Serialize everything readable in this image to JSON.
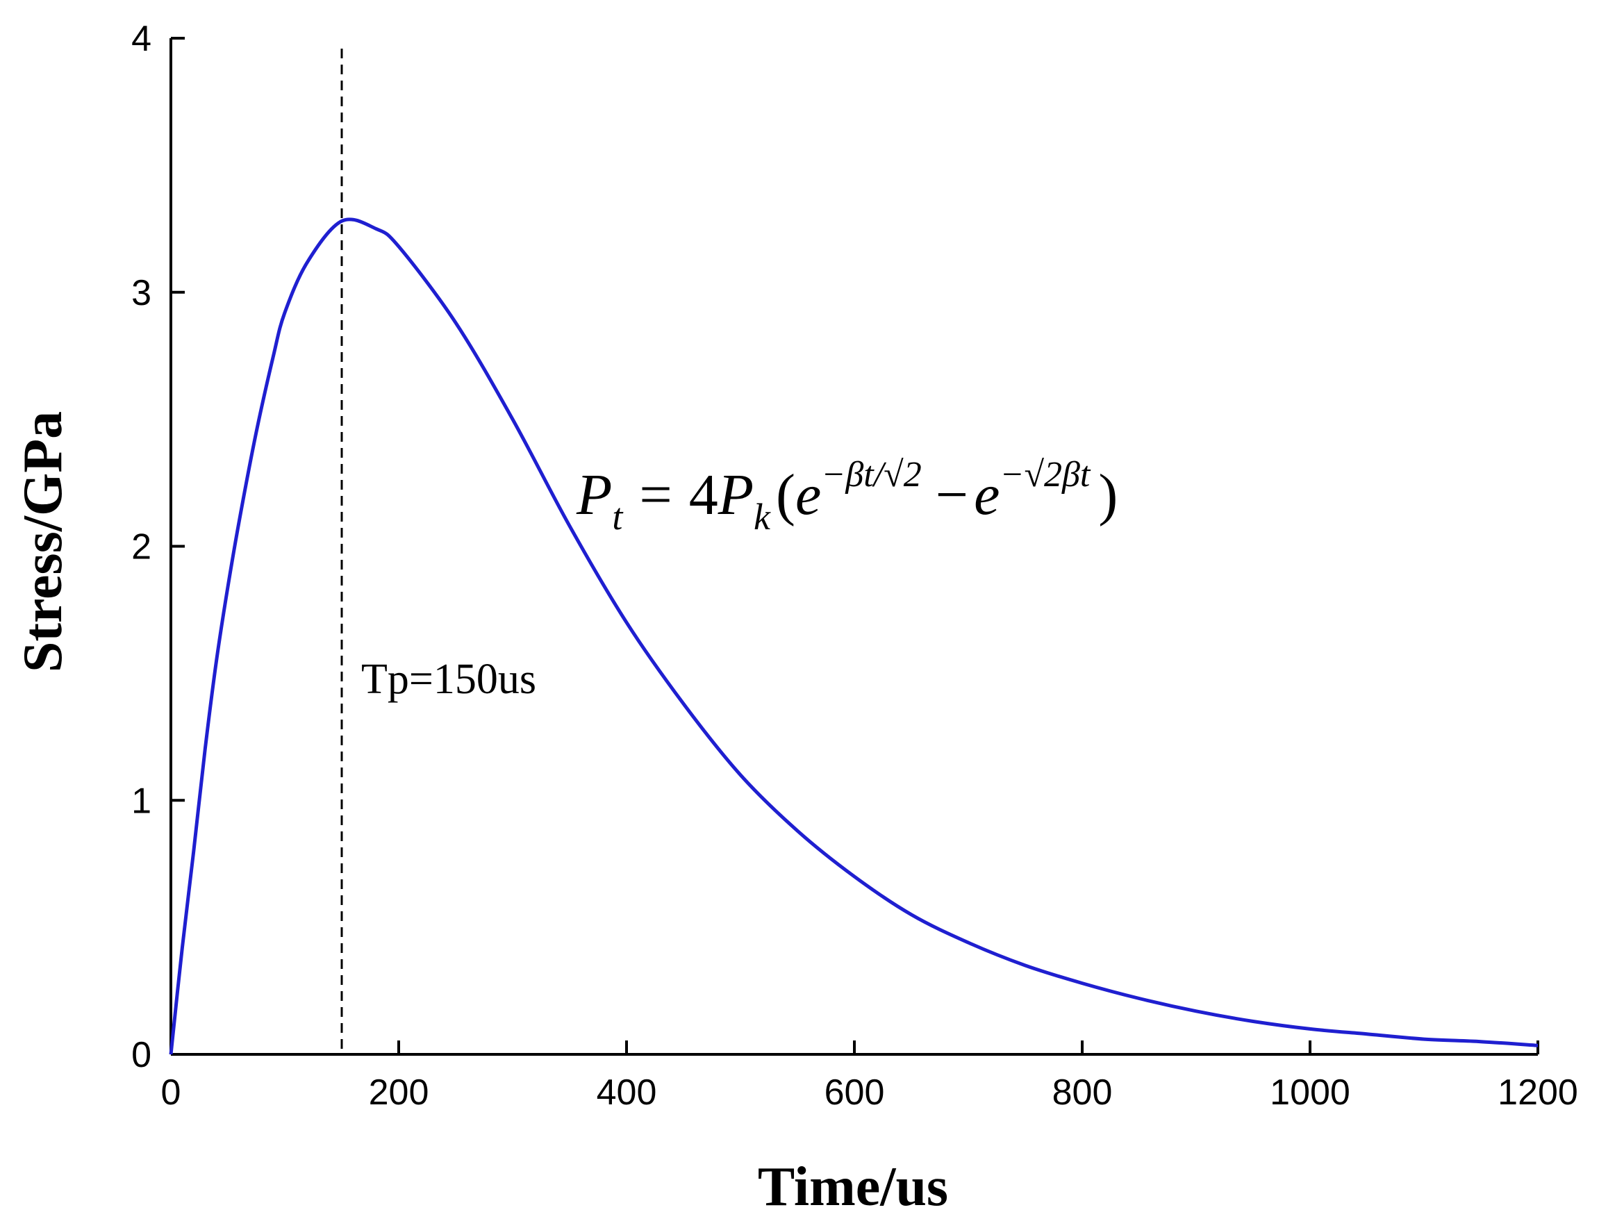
{
  "chart_data": {
    "type": "line",
    "title": "",
    "xlabel": "Time/us",
    "ylabel": "Stress/GPa",
    "xlim": [
      0,
      1200
    ],
    "ylim": [
      0,
      4
    ],
    "xticks": [
      0,
      200,
      400,
      600,
      800,
      1000,
      1200
    ],
    "yticks": [
      0,
      1,
      2,
      3,
      4
    ],
    "grid": false,
    "legend": "none",
    "series": [
      {
        "color": "#1f1fd0",
        "x": [
          0,
          10,
          20,
          30,
          40,
          50,
          60,
          75,
          90,
          100,
          120,
          150,
          180,
          200,
          250,
          300,
          350,
          400,
          450,
          500,
          550,
          600,
          650,
          700,
          750,
          800,
          850,
          900,
          950,
          1000,
          1050,
          1100,
          1150,
          1200
        ],
        "y": [
          0,
          0.42,
          0.8,
          1.2,
          1.55,
          1.84,
          2.1,
          2.45,
          2.75,
          2.92,
          3.12,
          3.28,
          3.25,
          3.18,
          2.88,
          2.5,
          2.08,
          1.7,
          1.38,
          1.1,
          0.88,
          0.7,
          0.55,
          0.44,
          0.35,
          0.28,
          0.22,
          0.17,
          0.13,
          0.1,
          0.08,
          0.06,
          0.05,
          0.035
        ]
      }
    ],
    "annotations": [
      {
        "type": "vline",
        "x": 150,
        "style": "dashed",
        "label": "Tp=150us"
      }
    ],
    "formula": {
      "lhs_base": "P",
      "lhs_sub": "t",
      "equals": "=",
      "coef": "4",
      "p_base": "P",
      "p_sub": "k",
      "open_paren": "(",
      "e1": "e",
      "exp1": "−βt/√2",
      "minus": "−",
      "e2": "e",
      "exp2": "−√2βt",
      "close_paren": ")"
    }
  }
}
